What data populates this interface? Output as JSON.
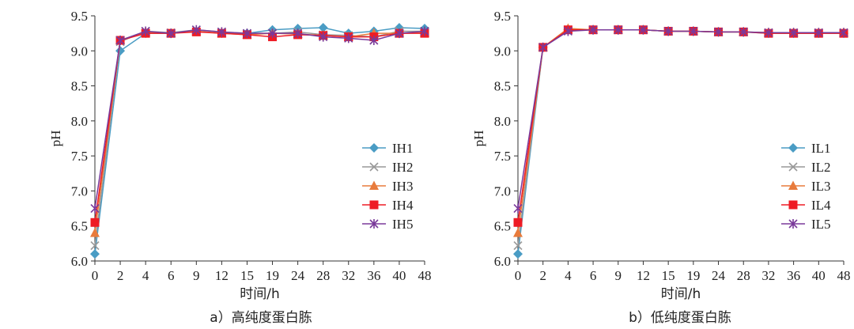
{
  "chart_data": [
    {
      "type": "line",
      "title": "",
      "caption": "a）高纯度蛋白胨",
      "xlabel": "时间/h",
      "ylabel": "pH",
      "ylim": [
        6.0,
        9.5
      ],
      "yticks": [
        "6.0",
        "6.5",
        "7.0",
        "7.5",
        "8.0",
        "8.5",
        "9.0",
        "9.5"
      ],
      "categories": [
        "0",
        "2",
        "4",
        "6",
        "9",
        "12",
        "15",
        "19",
        "24",
        "28",
        "32",
        "36",
        "40",
        "48"
      ],
      "legend_position": "right",
      "grid": false,
      "series": [
        {
          "name": "IH1",
          "color": "#4a9cc4",
          "marker": "diamond",
          "values": [
            6.1,
            9.0,
            9.25,
            9.25,
            9.28,
            9.25,
            9.25,
            9.3,
            9.32,
            9.33,
            9.25,
            9.28,
            9.33,
            9.32
          ]
        },
        {
          "name": "IH2",
          "color": "#999999",
          "marker": "x",
          "values": [
            6.22,
            9.13,
            9.28,
            9.26,
            9.3,
            9.27,
            9.25,
            9.25,
            9.27,
            9.23,
            9.22,
            9.2,
            9.28,
            9.28
          ]
        },
        {
          "name": "IH3",
          "color": "#e87b3c",
          "marker": "triangle",
          "values": [
            6.4,
            9.15,
            9.27,
            9.25,
            9.28,
            9.25,
            9.23,
            9.25,
            9.24,
            9.22,
            9.2,
            9.25,
            9.25,
            9.26
          ]
        },
        {
          "name": "IH4",
          "color": "#ee1c25",
          "marker": "square",
          "values": [
            6.55,
            9.15,
            9.25,
            9.25,
            9.27,
            9.25,
            9.23,
            9.2,
            9.23,
            9.22,
            9.2,
            9.2,
            9.25,
            9.25
          ]
        },
        {
          "name": "IH5",
          "color": "#7a3a9a",
          "marker": "star",
          "values": [
            6.75,
            9.15,
            9.28,
            9.25,
            9.3,
            9.27,
            9.25,
            9.25,
            9.25,
            9.2,
            9.18,
            9.15,
            9.25,
            9.28
          ]
        }
      ]
    },
    {
      "type": "line",
      "title": "",
      "caption": "b）低纯度蛋白胨",
      "xlabel": "时间/h",
      "ylabel": "pH",
      "ylim": [
        6.0,
        9.5
      ],
      "yticks": [
        "6.0",
        "6.5",
        "7.0",
        "7.5",
        "8.0",
        "8.5",
        "9.0",
        "9.5"
      ],
      "categories": [
        "0",
        "2",
        "4",
        "6",
        "9",
        "12",
        "15",
        "19",
        "24",
        "28",
        "32",
        "36",
        "40",
        "48"
      ],
      "legend_position": "right",
      "grid": false,
      "series": [
        {
          "name": "IL1",
          "color": "#4a9cc4",
          "marker": "diamond",
          "values": [
            6.1,
            9.05,
            9.3,
            9.3,
            9.3,
            9.3,
            9.28,
            9.28,
            9.27,
            9.27,
            9.25,
            9.25,
            9.25,
            9.25
          ]
        },
        {
          "name": "IL2",
          "color": "#999999",
          "marker": "x",
          "values": [
            6.22,
            9.05,
            9.3,
            9.3,
            9.3,
            9.3,
            9.28,
            9.28,
            9.27,
            9.27,
            9.26,
            9.26,
            9.26,
            9.26
          ]
        },
        {
          "name": "IL3",
          "color": "#e87b3c",
          "marker": "triangle",
          "values": [
            6.4,
            9.05,
            9.32,
            9.3,
            9.3,
            9.3,
            9.28,
            9.28,
            9.27,
            9.27,
            9.26,
            9.26,
            9.26,
            9.26
          ]
        },
        {
          "name": "IL4",
          "color": "#ee1c25",
          "marker": "square",
          "values": [
            6.55,
            9.05,
            9.3,
            9.3,
            9.3,
            9.3,
            9.28,
            9.28,
            9.27,
            9.27,
            9.25,
            9.25,
            9.25,
            9.25
          ]
        },
        {
          "name": "IL5",
          "color": "#7a3a9a",
          "marker": "star",
          "values": [
            6.75,
            9.05,
            9.28,
            9.3,
            9.3,
            9.3,
            9.28,
            9.28,
            9.27,
            9.27,
            9.26,
            9.26,
            9.26,
            9.26
          ]
        }
      ]
    }
  ]
}
